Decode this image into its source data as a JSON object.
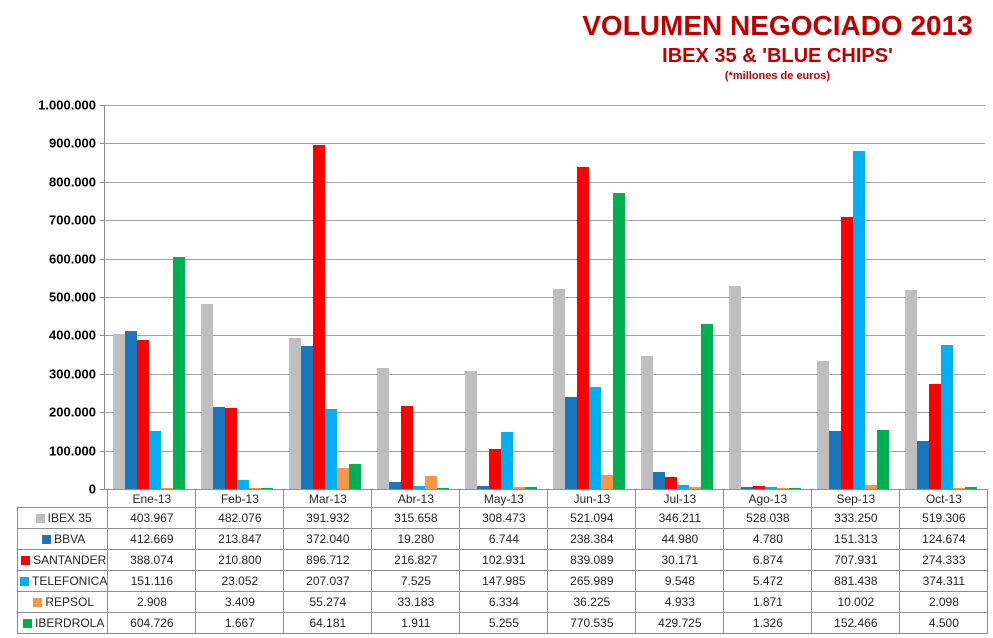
{
  "header": {
    "title": "VOLUMEN NEGOCIADO 2013",
    "subtitle": "IBEX 35 & 'BLUE CHIPS'",
    "note": "(*millones de euros)"
  },
  "palette": {
    "title_red": "#C00000",
    "gridline": "#A3A3A3",
    "axis": "#8C8C8C",
    "table_border": "#8C8C8C",
    "text": "#262626"
  },
  "chart_data": {
    "type": "bar",
    "title": "VOLUMEN NEGOCIADO 2013",
    "subtitle": "IBEX 35 & 'BLUE CHIPS'",
    "units_note": "(*millones de euros)",
    "grid": true,
    "legend_position": "data-table-left",
    "ylim": [
      0,
      1000000
    ],
    "y_step": 100000,
    "y_ticks": [
      "1.000.000",
      "900.000",
      "800.000",
      "700.000",
      "600.000",
      "500.000",
      "400.000",
      "300.000",
      "200.000",
      "100.000",
      "0"
    ],
    "categories": [
      "Ene-13",
      "Feb-13",
      "Mar-13",
      "Abr-13",
      "May-13",
      "Jun-13",
      "Jul-13",
      "Ago-13",
      "Sep-13",
      "Oct-13"
    ],
    "series": [
      {
        "name": "IBEX 35",
        "color": "#BFBFBF",
        "values": [
          403967,
          482076,
          391932,
          315658,
          308473,
          521094,
          346211,
          528038,
          333250,
          519306
        ],
        "display": [
          "403.967",
          "482.076",
          "391.932",
          "315.658",
          "308.473",
          "521.094",
          "346.211",
          "528.038",
          "333.250",
          "519.306"
        ]
      },
      {
        "name": "BBVA",
        "color": "#1B75BC",
        "values": [
          412669,
          213847,
          372040,
          19280,
          6744,
          238384,
          44980,
          4780,
          151313,
          124674
        ],
        "display": [
          "412.669",
          "213.847",
          "372.040",
          "19.280",
          "6.744",
          "238.384",
          "44.980",
          "4.780",
          "151.313",
          "124.674"
        ]
      },
      {
        "name": "SANTANDER",
        "color": "#FF0000",
        "values": [
          388074,
          210800,
          896712,
          216827,
          102931,
          839089,
          30171,
          6874,
          707931,
          274333
        ],
        "display": [
          "388.074",
          "210.800",
          "896.712",
          "216.827",
          "102.931",
          "839.089",
          "30.171",
          "6.874",
          "707.931",
          "274.333"
        ]
      },
      {
        "name": "TELEFONICA",
        "color": "#00B0F0",
        "values": [
          151116,
          23052,
          207037,
          7525,
          147985,
          265989,
          9548,
          5472,
          881438,
          374311
        ],
        "display": [
          "151.116",
          "23.052",
          "207.037",
          "7.525",
          "147.985",
          "265.989",
          "9.548",
          "5.472",
          "881.438",
          "374.311"
        ]
      },
      {
        "name": "REPSOL",
        "color": "#F79646",
        "values": [
          2908,
          3409,
          55274,
          33183,
          6334,
          36225,
          4933,
          1871,
          10002,
          2098
        ],
        "display": [
          "2.908",
          "3.409",
          "55.274",
          "33.183",
          "6.334",
          "36.225",
          "4.933",
          "1.871",
          "10.002",
          "2.098"
        ]
      },
      {
        "name": "IBERDROLA",
        "color": "#00B050",
        "values": [
          604726,
          1667,
          64181,
          1911,
          5255,
          770535,
          429725,
          1326,
          152466,
          4500
        ],
        "display": [
          "604.726",
          "1.667",
          "64.181",
          "1.911",
          "5.255",
          "770.535",
          "429.725",
          "1.326",
          "152.466",
          "4.500"
        ]
      }
    ]
  }
}
